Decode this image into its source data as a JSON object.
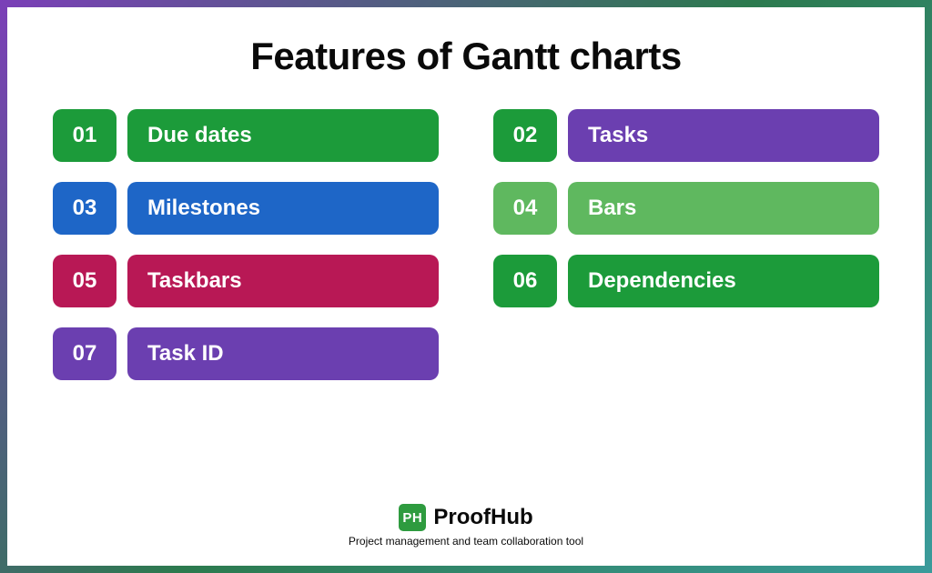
{
  "title": "Features of Gantt charts",
  "title_fontsize": 42,
  "title_color": "#0a0a0a",
  "background_color": "#ffffff",
  "border_gradient": [
    "#7b3fb8",
    "#2c7a4e",
    "#3a9b9b"
  ],
  "items": [
    {
      "num": "01",
      "label": "Due dates",
      "num_color": "#1c9b3a",
      "label_color": "#1c9b3a"
    },
    {
      "num": "02",
      "label": "Tasks",
      "num_color": "#1c9b3a",
      "label_color": "#6b3fb0"
    },
    {
      "num": "03",
      "label": "Milestones",
      "num_color": "#1e66c7",
      "label_color": "#1e66c7"
    },
    {
      "num": "04",
      "label": "Bars",
      "num_color": "#5fb85f",
      "label_color": "#5fb85f"
    },
    {
      "num": "05",
      "label": "Taskbars",
      "num_color": "#b81855",
      "label_color": "#b81855"
    },
    {
      "num": "06",
      "label": "Dependencies",
      "num_color": "#1c9b3a",
      "label_color": "#1c9b3a"
    },
    {
      "num": "07",
      "label": "Task ID",
      "num_color": "#6b3fb0",
      "label_color": "#6b3fb0"
    }
  ],
  "item_height": 58,
  "item_radius": 10,
  "item_fontsize": 24,
  "item_text_color": "#ffffff",
  "brand": {
    "icon_text": "PH",
    "icon_bg": "#2e9b3f",
    "name": "ProofHub",
    "tagline": "Project management and team collaboration tool"
  }
}
